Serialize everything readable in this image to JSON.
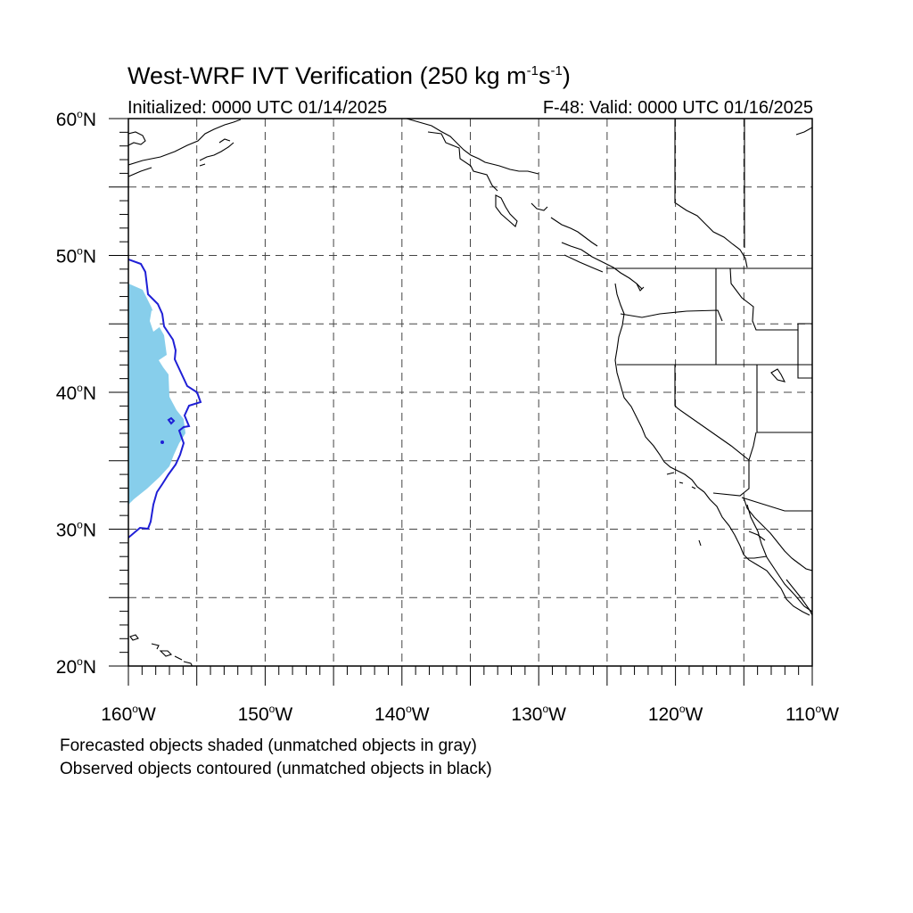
{
  "title": {
    "main": "West-WRF IVT Verification (250 kg m",
    "exp1": "-1",
    "mid": "s",
    "exp2": "-1",
    "end": ")"
  },
  "subtitle_left": "Initialized: 0000 UTC 01/14/2025",
  "subtitle_right": "F-48: Valid: 0000 UTC 01/16/2025",
  "notes": [
    "Forecasted objects shaded (unmatched objects in gray)",
    "Observed objects contoured (unmatched objects in black)"
  ],
  "lat_labels": [
    {
      "num": "60",
      "deg": "o",
      "dir": "N",
      "lat": 60
    },
    {
      "num": "50",
      "deg": "o",
      "dir": "N",
      "lat": 50
    },
    {
      "num": "40",
      "deg": "o",
      "dir": "N",
      "lat": 40
    },
    {
      "num": "30",
      "deg": "o",
      "dir": "N",
      "lat": 30
    },
    {
      "num": "20",
      "deg": "o",
      "dir": "N",
      "lat": 20
    }
  ],
  "lon_labels": [
    {
      "num": "160",
      "deg": "o",
      "dir": "W",
      "lon": -160
    },
    {
      "num": "150",
      "deg": "o",
      "dir": "W",
      "lon": -150
    },
    {
      "num": "140",
      "deg": "o",
      "dir": "W",
      "lon": -140
    },
    {
      "num": "130",
      "deg": "o",
      "dir": "W",
      "lon": -130
    },
    {
      "num": "120",
      "deg": "o",
      "dir": "W",
      "lon": -120
    },
    {
      "num": "110",
      "deg": "o",
      "dir": "W",
      "lon": -110
    }
  ],
  "map_extent": {
    "lon_min": -160,
    "lon_max": -110,
    "lat_min": 20,
    "lat_max": 60
  },
  "grid_interval_deg": 5,
  "colors": {
    "forecast_fill": "#87ceeb",
    "observed_contour": "#1f1fd6",
    "coast": "#000000",
    "grid": "#555555"
  }
}
